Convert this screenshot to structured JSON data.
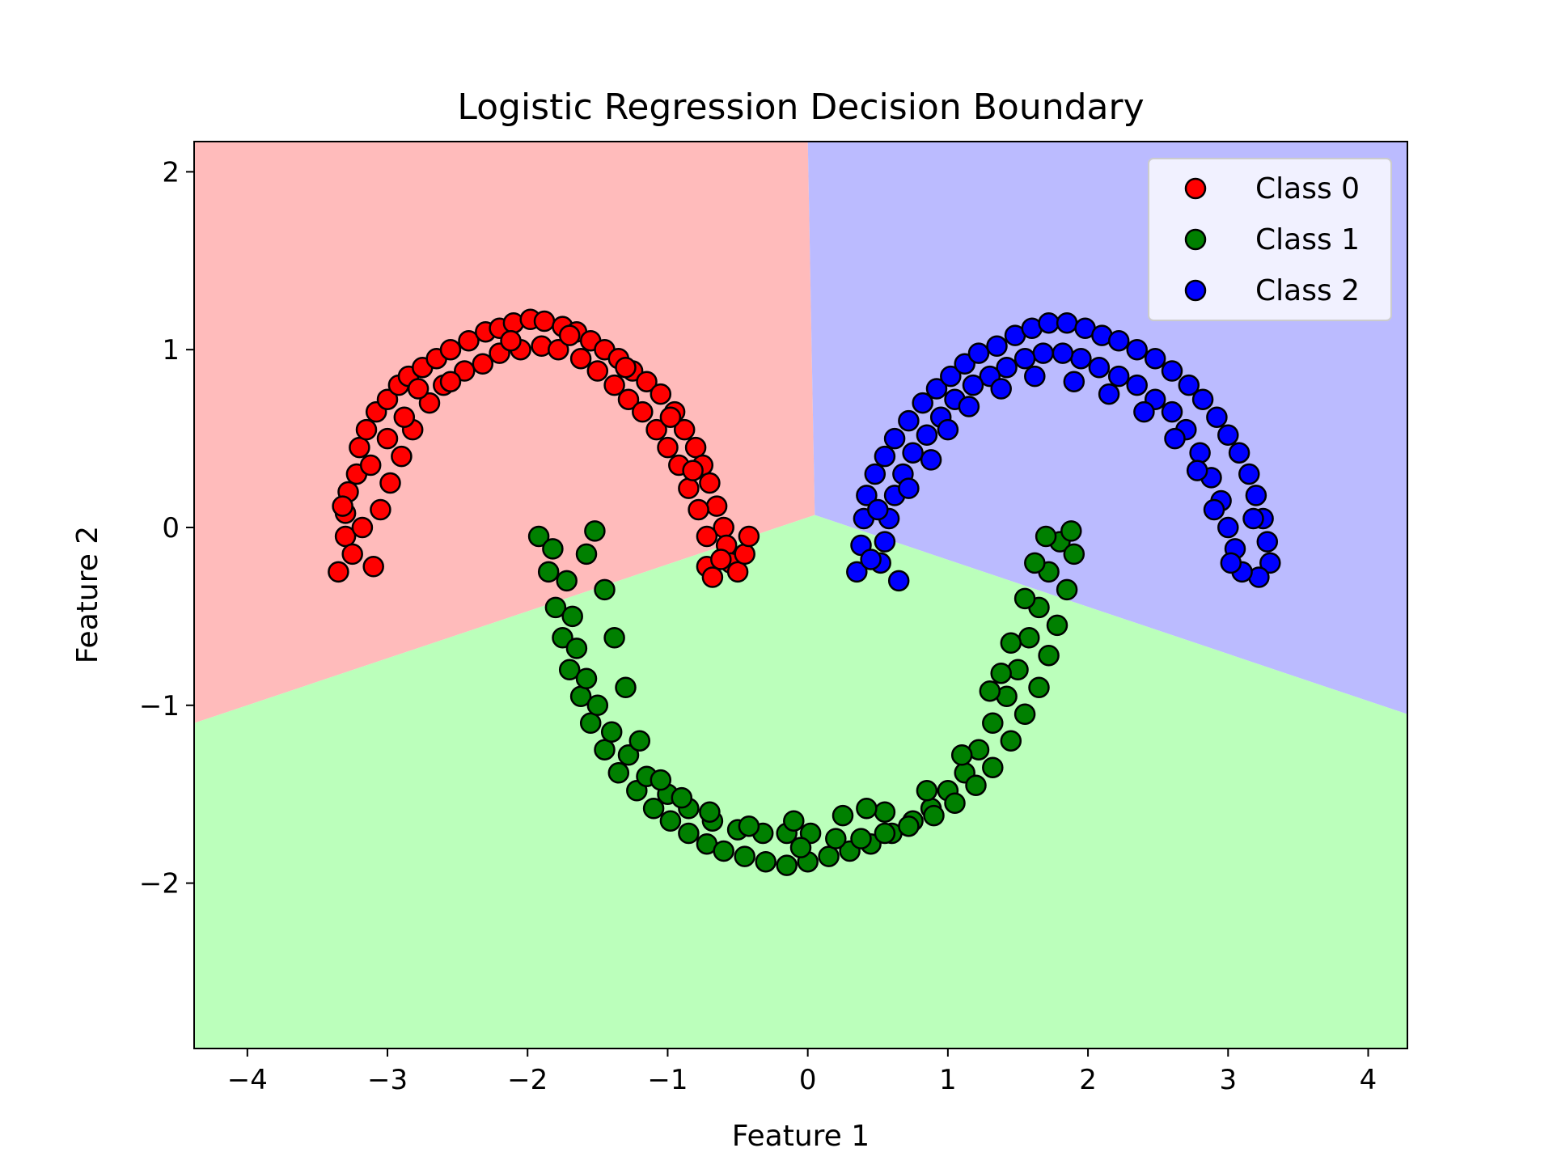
{
  "chart_data": {
    "type": "scatter",
    "title": "Logistic Regression Decision Boundary",
    "xlabel": "Feature 1",
    "ylabel": "Feature 2",
    "xlim": [
      -4.38,
      4.28
    ],
    "ylim": [
      -2.93,
      2.17
    ],
    "xticks": [
      {
        "value": -4,
        "label": "−4"
      },
      {
        "value": -3,
        "label": "−3"
      },
      {
        "value": -2,
        "label": "−2"
      },
      {
        "value": -1,
        "label": "−1"
      },
      {
        "value": 0,
        "label": "0"
      },
      {
        "value": 1,
        "label": "1"
      },
      {
        "value": 2,
        "label": "2"
      },
      {
        "value": 3,
        "label": "3"
      },
      {
        "value": 4,
        "label": "4"
      }
    ],
    "yticks": [
      {
        "value": 2,
        "label": "2"
      },
      {
        "value": 1,
        "label": "1"
      },
      {
        "value": 0,
        "label": "0"
      },
      {
        "value": -1,
        "label": "−1"
      },
      {
        "value": -2,
        "label": "−2"
      }
    ],
    "legend_position": "upper-right",
    "grid": false,
    "decision_regions": [
      {
        "class": "Class 0",
        "color": "#ffbbbb",
        "polygon": [
          [
            -4.38,
            2.17
          ],
          [
            0.0,
            2.17
          ],
          [
            0.05,
            0.07
          ],
          [
            -4.38,
            -1.1
          ]
        ]
      },
      {
        "class": "Class 2",
        "color": "#bbbbff",
        "polygon": [
          [
            0.0,
            2.17
          ],
          [
            4.28,
            2.17
          ],
          [
            4.28,
            -1.05
          ],
          [
            0.05,
            0.07
          ]
        ]
      },
      {
        "class": "Class 1",
        "color": "#bbffbb",
        "polygon": [
          [
            -4.38,
            -1.1
          ],
          [
            0.05,
            0.07
          ],
          [
            4.28,
            -1.05
          ],
          [
            4.28,
            -2.93
          ],
          [
            -4.38,
            -2.93
          ]
        ]
      }
    ],
    "series": [
      {
        "name": "Class 0",
        "color": "#ff0000",
        "points": [
          [
            -3.35,
            -0.25
          ],
          [
            -3.3,
            -0.05
          ],
          [
            -3.3,
            0.08
          ],
          [
            -3.28,
            0.2
          ],
          [
            -3.22,
            0.3
          ],
          [
            -3.2,
            0.45
          ],
          [
            -3.15,
            0.55
          ],
          [
            -3.08,
            0.65
          ],
          [
            -3.0,
            0.72
          ],
          [
            -2.92,
            0.8
          ],
          [
            -2.85,
            0.85
          ],
          [
            -2.75,
            0.9
          ],
          [
            -2.65,
            0.95
          ],
          [
            -2.55,
            1.0
          ],
          [
            -2.42,
            1.05
          ],
          [
            -2.3,
            1.1
          ],
          [
            -2.2,
            1.12
          ],
          [
            -2.1,
            1.15
          ],
          [
            -1.98,
            1.17
          ],
          [
            -1.88,
            1.16
          ],
          [
            -1.75,
            1.13
          ],
          [
            -1.65,
            1.1
          ],
          [
            -1.55,
            1.05
          ],
          [
            -1.45,
            1.0
          ],
          [
            -1.35,
            0.95
          ],
          [
            -1.25,
            0.88
          ],
          [
            -1.15,
            0.82
          ],
          [
            -1.05,
            0.75
          ],
          [
            -0.95,
            0.65
          ],
          [
            -0.88,
            0.55
          ],
          [
            -0.8,
            0.45
          ],
          [
            -0.75,
            0.35
          ],
          [
            -0.7,
            0.25
          ],
          [
            -0.65,
            0.12
          ],
          [
            -0.6,
            0.0
          ],
          [
            -0.58,
            -0.1
          ],
          [
            -0.55,
            -0.2
          ],
          [
            -0.5,
            -0.25
          ],
          [
            -0.45,
            -0.15
          ],
          [
            -0.42,
            -0.05
          ],
          [
            -0.72,
            -0.22
          ],
          [
            -0.68,
            -0.28
          ],
          [
            -3.25,
            -0.15
          ],
          [
            -3.1,
            -0.22
          ],
          [
            -3.05,
            0.1
          ],
          [
            -2.98,
            0.25
          ],
          [
            -2.9,
            0.4
          ],
          [
            -2.82,
            0.55
          ],
          [
            -2.7,
            0.7
          ],
          [
            -2.6,
            0.8
          ],
          [
            -2.45,
            0.88
          ],
          [
            -2.32,
            0.92
          ],
          [
            -2.2,
            0.98
          ],
          [
            -2.05,
            1.0
          ],
          [
            -1.9,
            1.02
          ],
          [
            -1.78,
            1.0
          ],
          [
            -1.62,
            0.95
          ],
          [
            -1.5,
            0.88
          ],
          [
            -1.38,
            0.8
          ],
          [
            -1.28,
            0.72
          ],
          [
            -1.18,
            0.65
          ],
          [
            -1.08,
            0.55
          ],
          [
            -1.0,
            0.45
          ],
          [
            -0.92,
            0.35
          ],
          [
            -0.85,
            0.22
          ],
          [
            -0.78,
            0.1
          ],
          [
            -0.72,
            -0.05
          ],
          [
            -3.18,
            0.0
          ],
          [
            -3.12,
            0.35
          ],
          [
            -3.0,
            0.5
          ],
          [
            -2.88,
            0.62
          ],
          [
            -2.55,
            0.82
          ],
          [
            -2.12,
            1.05
          ],
          [
            -1.7,
            1.08
          ],
          [
            -1.3,
            0.9
          ],
          [
            -0.98,
            0.62
          ],
          [
            -0.82,
            0.32
          ],
          [
            -0.62,
            -0.18
          ],
          [
            -3.32,
            0.12
          ],
          [
            -2.78,
            0.78
          ]
        ]
      },
      {
        "name": "Class 1",
        "color": "#008000",
        "points": [
          [
            -1.92,
            -0.05
          ],
          [
            -1.85,
            -0.25
          ],
          [
            -1.8,
            -0.45
          ],
          [
            -1.75,
            -0.62
          ],
          [
            -1.7,
            -0.8
          ],
          [
            -1.62,
            -0.95
          ],
          [
            -1.55,
            -1.1
          ],
          [
            -1.45,
            -1.25
          ],
          [
            -1.35,
            -1.38
          ],
          [
            -1.22,
            -1.48
          ],
          [
            -1.1,
            -1.58
          ],
          [
            -0.98,
            -1.65
          ],
          [
            -0.85,
            -1.72
          ],
          [
            -0.72,
            -1.78
          ],
          [
            -0.6,
            -1.82
          ],
          [
            -0.45,
            -1.85
          ],
          [
            -0.3,
            -1.88
          ],
          [
            -0.15,
            -1.9
          ],
          [
            0.0,
            -1.88
          ],
          [
            0.15,
            -1.85
          ],
          [
            0.3,
            -1.82
          ],
          [
            0.45,
            -1.78
          ],
          [
            0.6,
            -1.72
          ],
          [
            0.75,
            -1.65
          ],
          [
            0.88,
            -1.58
          ],
          [
            1.0,
            -1.48
          ],
          [
            1.12,
            -1.38
          ],
          [
            1.22,
            -1.25
          ],
          [
            1.32,
            -1.1
          ],
          [
            1.42,
            -0.95
          ],
          [
            1.5,
            -0.8
          ],
          [
            1.58,
            -0.62
          ],
          [
            1.65,
            -0.45
          ],
          [
            1.72,
            -0.25
          ],
          [
            1.8,
            -0.08
          ],
          [
            1.88,
            -0.02
          ],
          [
            1.9,
            -0.15
          ],
          [
            1.85,
            -0.35
          ],
          [
            1.78,
            -0.55
          ],
          [
            1.72,
            -0.72
          ],
          [
            1.65,
            -0.9
          ],
          [
            1.55,
            -1.05
          ],
          [
            1.45,
            -1.2
          ],
          [
            1.32,
            -1.35
          ],
          [
            1.2,
            -1.45
          ],
          [
            1.05,
            -1.55
          ],
          [
            0.9,
            -1.62
          ],
          [
            0.72,
            -1.68
          ],
          [
            0.55,
            -1.72
          ],
          [
            0.38,
            -1.75
          ],
          [
            0.2,
            -1.75
          ],
          [
            0.02,
            -1.72
          ],
          [
            -0.15,
            -1.72
          ],
          [
            -0.32,
            -1.72
          ],
          [
            -0.5,
            -1.7
          ],
          [
            -0.68,
            -1.65
          ],
          [
            -0.85,
            -1.58
          ],
          [
            -1.0,
            -1.5
          ],
          [
            -1.15,
            -1.4
          ],
          [
            -1.28,
            -1.28
          ],
          [
            -1.4,
            -1.15
          ],
          [
            -1.5,
            -1.0
          ],
          [
            -1.58,
            -0.85
          ],
          [
            -1.65,
            -0.68
          ],
          [
            -1.68,
            -0.5
          ],
          [
            -1.72,
            -0.3
          ],
          [
            -1.58,
            -0.15
          ],
          [
            -1.52,
            -0.02
          ],
          [
            -1.45,
            -0.35
          ],
          [
            -1.38,
            -0.62
          ],
          [
            -1.3,
            -0.9
          ],
          [
            -1.2,
            -1.2
          ],
          [
            -1.05,
            -1.42
          ],
          [
            -0.9,
            -1.52
          ],
          [
            -0.7,
            -1.6
          ],
          [
            -0.42,
            -1.68
          ],
          [
            -0.1,
            -1.65
          ],
          [
            0.25,
            -1.62
          ],
          [
            0.55,
            -1.6
          ],
          [
            0.85,
            -1.48
          ],
          [
            1.1,
            -1.28
          ],
          [
            1.3,
            -0.92
          ],
          [
            1.45,
            -0.65
          ],
          [
            1.55,
            -0.4
          ],
          [
            1.62,
            -0.2
          ],
          [
            1.7,
            -0.05
          ],
          [
            -1.82,
            -0.12
          ],
          [
            -0.05,
            -1.8
          ],
          [
            0.42,
            -1.58
          ],
          [
            1.38,
            -0.82
          ]
        ]
      },
      {
        "name": "Class 2",
        "color": "#0000ff",
        "points": [
          [
            0.35,
            -0.25
          ],
          [
            0.38,
            -0.1
          ],
          [
            0.4,
            0.05
          ],
          [
            0.42,
            0.18
          ],
          [
            0.48,
            0.3
          ],
          [
            0.55,
            0.4
          ],
          [
            0.62,
            0.5
          ],
          [
            0.72,
            0.6
          ],
          [
            0.82,
            0.7
          ],
          [
            0.92,
            0.78
          ],
          [
            1.02,
            0.85
          ],
          [
            1.12,
            0.92
          ],
          [
            1.22,
            0.98
          ],
          [
            1.35,
            1.02
          ],
          [
            1.48,
            1.08
          ],
          [
            1.6,
            1.12
          ],
          [
            1.72,
            1.15
          ],
          [
            1.85,
            1.15
          ],
          [
            1.98,
            1.12
          ],
          [
            2.1,
            1.08
          ],
          [
            2.22,
            1.05
          ],
          [
            2.35,
            1.0
          ],
          [
            2.48,
            0.95
          ],
          [
            2.6,
            0.88
          ],
          [
            2.72,
            0.8
          ],
          [
            2.82,
            0.72
          ],
          [
            2.92,
            0.62
          ],
          [
            3.0,
            0.52
          ],
          [
            3.08,
            0.42
          ],
          [
            3.15,
            0.3
          ],
          [
            3.2,
            0.18
          ],
          [
            3.25,
            0.05
          ],
          [
            3.28,
            -0.08
          ],
          [
            3.3,
            -0.2
          ],
          [
            3.22,
            -0.28
          ],
          [
            3.1,
            -0.25
          ],
          [
            3.05,
            -0.12
          ],
          [
            3.0,
            0.0
          ],
          [
            2.95,
            0.15
          ],
          [
            2.88,
            0.28
          ],
          [
            2.8,
            0.42
          ],
          [
            2.7,
            0.55
          ],
          [
            2.6,
            0.65
          ],
          [
            2.48,
            0.72
          ],
          [
            2.35,
            0.8
          ],
          [
            2.22,
            0.85
          ],
          [
            2.08,
            0.9
          ],
          [
            1.95,
            0.95
          ],
          [
            1.82,
            0.98
          ],
          [
            1.68,
            0.98
          ],
          [
            1.55,
            0.95
          ],
          [
            1.42,
            0.9
          ],
          [
            1.3,
            0.85
          ],
          [
            1.18,
            0.8
          ],
          [
            1.05,
            0.72
          ],
          [
            0.95,
            0.62
          ],
          [
            0.85,
            0.52
          ],
          [
            0.75,
            0.42
          ],
          [
            0.68,
            0.3
          ],
          [
            0.62,
            0.18
          ],
          [
            0.58,
            0.05
          ],
          [
            0.55,
            -0.08
          ],
          [
            0.52,
            -0.2
          ],
          [
            0.65,
            -0.3
          ],
          [
            0.5,
            0.1
          ],
          [
            0.72,
            0.22
          ],
          [
            0.88,
            0.38
          ],
          [
            1.0,
            0.55
          ],
          [
            1.15,
            0.68
          ],
          [
            1.38,
            0.78
          ],
          [
            1.62,
            0.85
          ],
          [
            1.9,
            0.82
          ],
          [
            2.15,
            0.75
          ],
          [
            2.4,
            0.65
          ],
          [
            2.62,
            0.5
          ],
          [
            2.78,
            0.32
          ],
          [
            2.9,
            0.1
          ],
          [
            3.02,
            -0.2
          ],
          [
            3.18,
            0.05
          ],
          [
            0.45,
            -0.18
          ]
        ]
      }
    ]
  }
}
